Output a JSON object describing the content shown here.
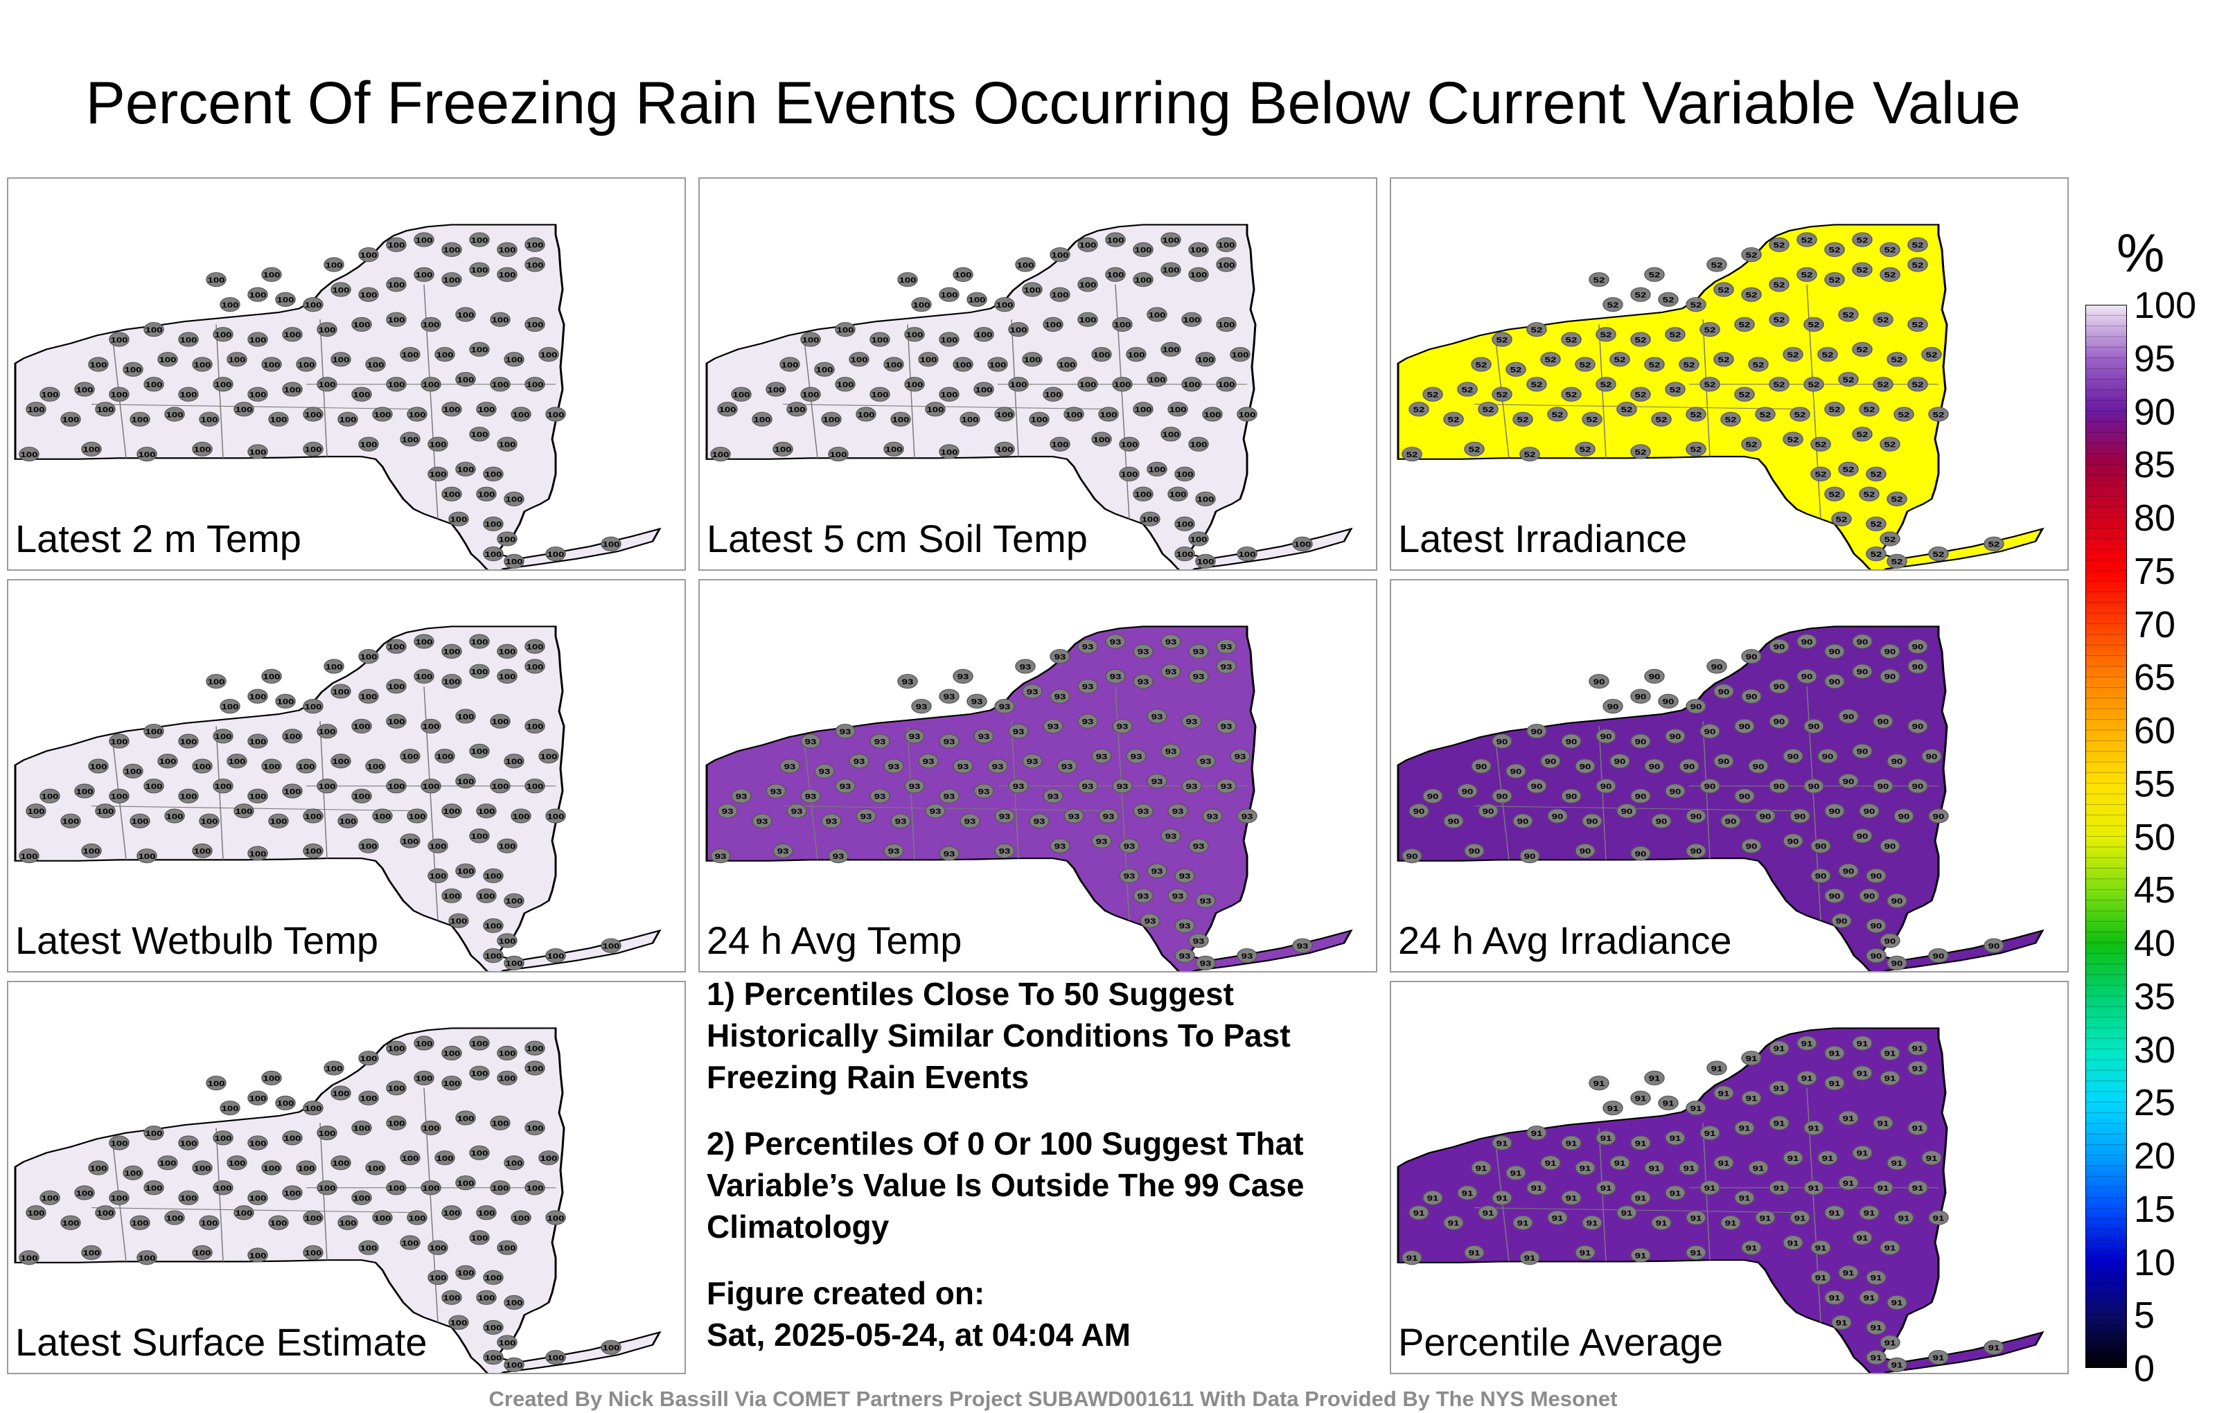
{
  "title": "Percent Of Freezing Rain Events Occurring Below Current Variable Value",
  "panels": [
    {
      "label": "Latest 2 m Temp",
      "fill": "#efe9f4",
      "value": "100"
    },
    {
      "label": "Latest 5 cm Soil Temp",
      "fill": "#efe9f4",
      "value": "100"
    },
    {
      "label": "Latest Irradiance",
      "fill": "#ffff00",
      "value": "52"
    },
    {
      "label": "Latest Wetbulb Temp",
      "fill": "#efe9f4",
      "value": "100"
    },
    {
      "label": "24 h Avg Temp",
      "fill": "#8a40b6",
      "value": "93"
    },
    {
      "label": "24 h Avg Irradiance",
      "fill": "#6a22a0",
      "value": "90"
    },
    {
      "label": "Latest Surface Estimate",
      "fill": "#efe9f4",
      "value": "100"
    },
    {
      "label": "Percentile Average",
      "fill": "#6d22a6",
      "value": "91"
    }
  ],
  "notes": {
    "n1": "1) Percentiles Close To 50 Suggest Historically Similar Conditions To Past Freezing Rain Events",
    "n2": "2) Percentiles Of 0 Or 100 Suggest That Variable’s Value Is Outside The 99 Case Climatology",
    "created_label": "Figure created on:",
    "created_date": "Sat, 2025-05-24, at 04:04 AM"
  },
  "legend": {
    "unit": "%",
    "ticks": [
      "100",
      "95",
      "90",
      "85",
      "80",
      "75",
      "70",
      "65",
      "60",
      "55",
      "50",
      "45",
      "40",
      "35",
      "30",
      "25",
      "20",
      "15",
      "10",
      "5",
      "0"
    ]
  },
  "footer": "Created By Nick Bassill Via COMET Partners Project SUBAWD001611 With Data Provided By The NYS Mesonet"
}
